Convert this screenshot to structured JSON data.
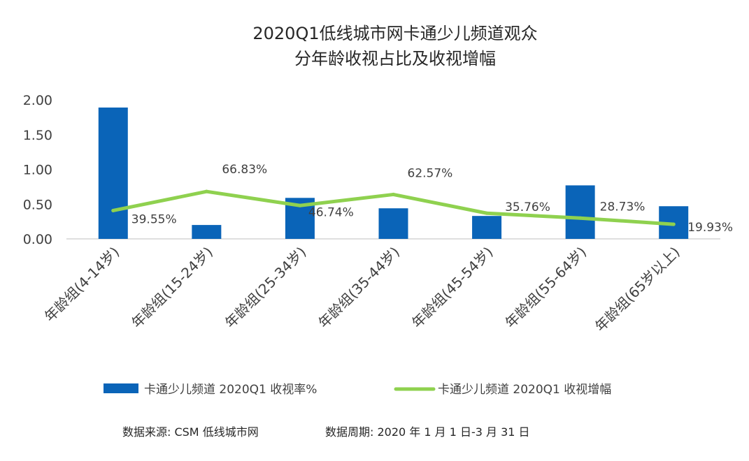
{
  "chart_data": {
    "type": "bar+line",
    "title_lines": [
      "2020Q1低线城市网卡通少儿频道观众",
      "分年龄收视占比及收视增幅"
    ],
    "categories": [
      "年龄组(4-14岁)",
      "年龄组(15-24岁)",
      "年龄组(25-34岁)",
      "年龄组(35-44岁)",
      "年龄组(45-54岁)",
      "年龄组(55-64岁)",
      "年龄组(65岁以上)"
    ],
    "y_ticks": [
      "0.00",
      "0.50",
      "1.00",
      "1.50",
      "2.00"
    ],
    "ylim": [
      0,
      2.0
    ],
    "series": [
      {
        "name": "卡通少儿频道  2020Q1  收视率%",
        "kind": "bar",
        "color": "#0a64b8",
        "values": [
          1.89,
          0.2,
          0.59,
          0.44,
          0.33,
          0.77,
          0.47
        ]
      },
      {
        "name": "卡通少儿频道  2020Q1  收视增幅",
        "kind": "line",
        "color": "#8fd14f",
        "values": [
          39.55,
          66.83,
          46.74,
          62.57,
          35.76,
          28.73,
          19.93
        ],
        "labels": [
          "39.55%",
          "66.83%",
          "46.74%",
          "62.57%",
          "35.76%",
          "28.73%",
          "19.93%"
        ]
      }
    ],
    "legend_position": "bottom",
    "grid": false
  },
  "footer": {
    "source": "数据来源:  CSM 低线城市网",
    "period": "数据周期:  2020 年 1 月 1 日-3 月 31 日"
  }
}
